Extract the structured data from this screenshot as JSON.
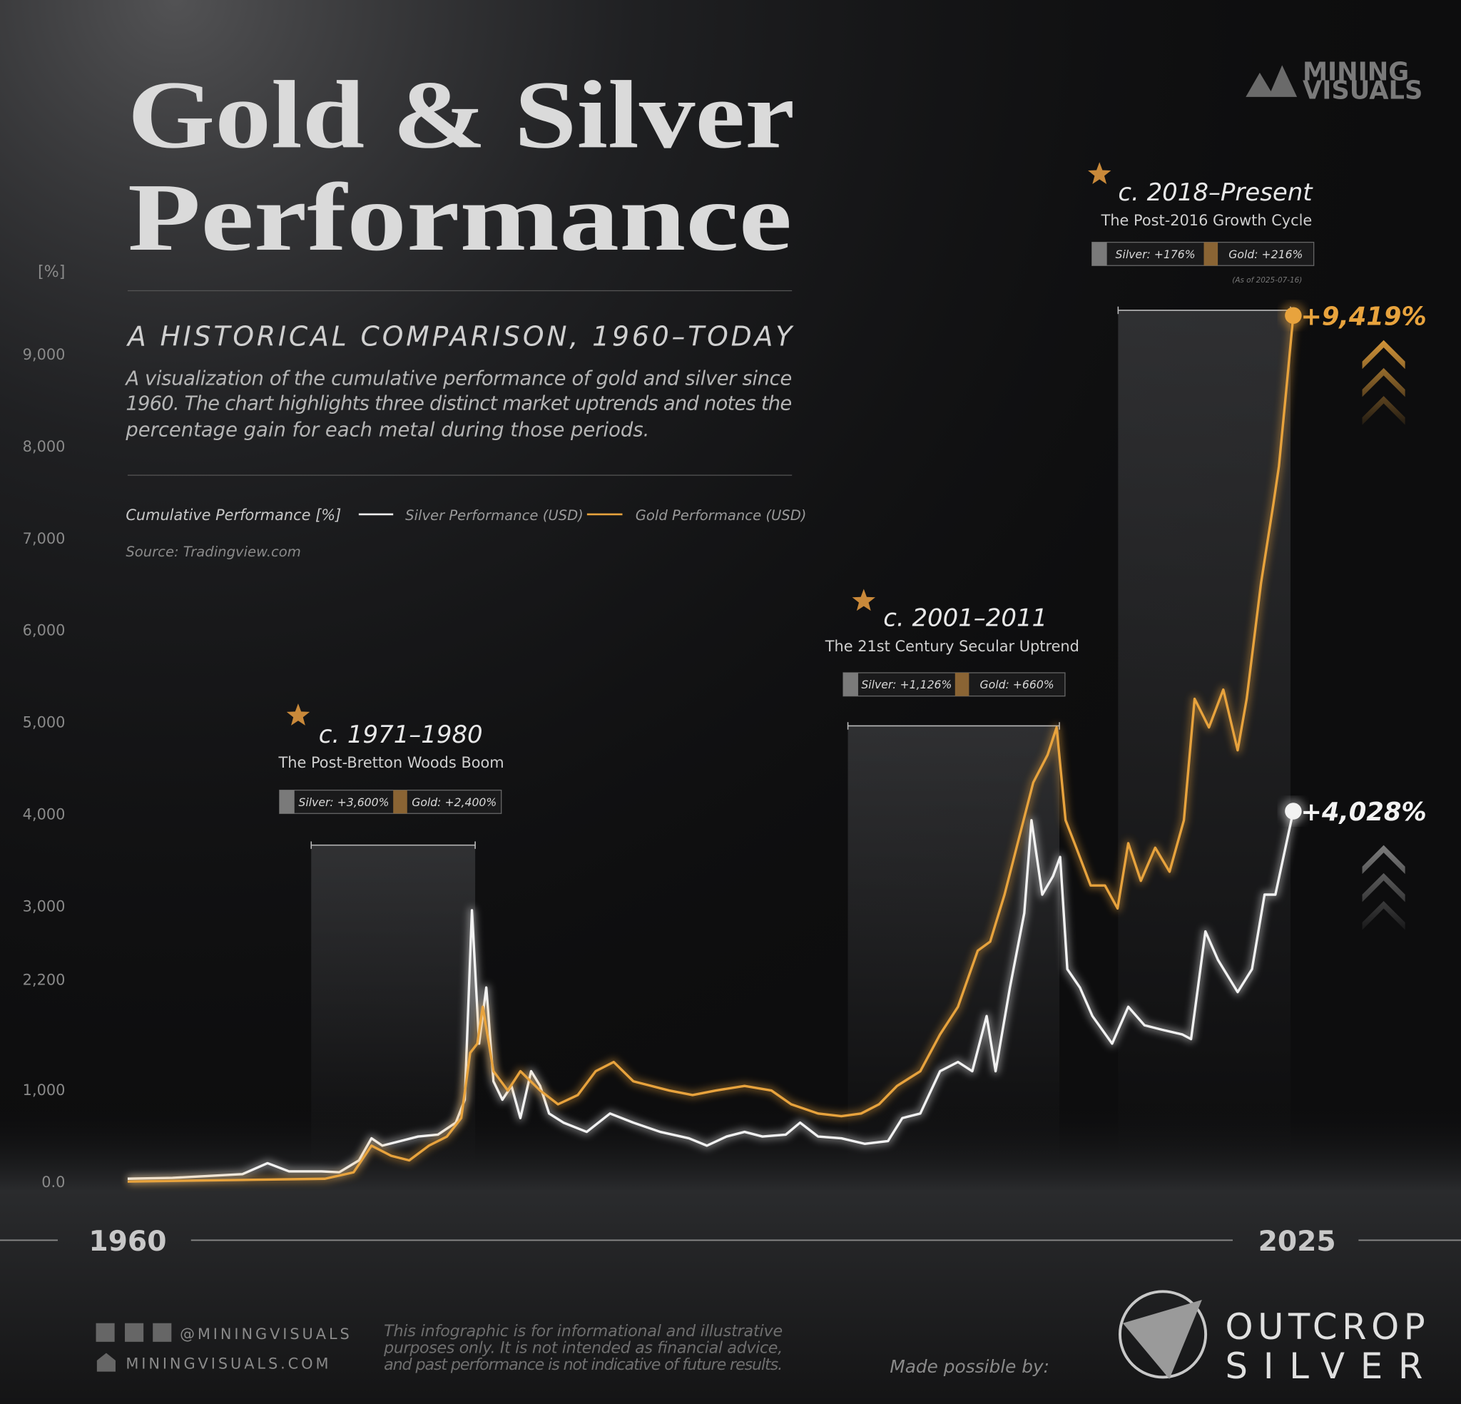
{
  "chart_data": {
    "type": "line",
    "title": [
      "Gold & Silver",
      "Performance"
    ],
    "subtitle": "A HISTORICAL COMPARISON, 1960–TODAY",
    "description": [
      "A visualization of the cumulative performance of gold and silver since",
      "1960. The chart highlights three distinct market uptrends and notes the",
      "percentage gain for each metal during those periods."
    ],
    "legend_title": "Cumulative Performance [%]",
    "source": "Source: Tradingview.com",
    "ylabel": "[%]",
    "xlim": [
      1960,
      2025
    ],
    "xticks": [
      1960,
      2025
    ],
    "ylim": [
      0,
      9800
    ],
    "yticks": [
      {
        "value": 0,
        "label": "0.0"
      },
      {
        "value": 1000,
        "label": "1,000"
      },
      {
        "value": 2200,
        "label": "2,200"
      },
      {
        "value": 3000,
        "label": "3,000"
      },
      {
        "value": 4000,
        "label": "4,000"
      },
      {
        "value": 5000,
        "label": "5,000"
      },
      {
        "value": 6000,
        "label": "6,000"
      },
      {
        "value": 7000,
        "label": "7,000"
      },
      {
        "value": 8000,
        "label": "8,000"
      },
      {
        "value": 9000,
        "label": "9,000"
      }
    ],
    "grid": false,
    "series": [
      {
        "name": "Silver Performance (USD)",
        "color": "#f2f2f2",
        "end_label": "+4,028%",
        "x": [
          1960.0,
          1962.5,
          1966.4,
          1967.8,
          1969.0,
          1970.8,
          1971.8,
          1972.9,
          1973.6,
          1974.2,
          1975.2,
          1976.2,
          1977.3,
          1978.3,
          1978.8,
          1979.2,
          1979.6,
          1980.0,
          1980.4,
          1980.9,
          1981.4,
          1981.9,
          1982.5,
          1983.0,
          1983.5,
          1984.3,
          1985.6,
          1986.9,
          1988.2,
          1989.7,
          1991.3,
          1992.3,
          1993.4,
          1994.4,
          1995.4,
          1996.7,
          1997.5,
          1998.5,
          1999.8,
          2001.1,
          2002.4,
          2003.2,
          2004.2,
          2005.3,
          2006.3,
          2007.1,
          2007.9,
          2008.4,
          2009.2,
          2010.0,
          2010.4,
          2011.0,
          2011.6,
          2012.0,
          2012.4,
          2013.1,
          2013.8,
          2014.9,
          2015.8,
          2016.7,
          2017.7,
          2018.8,
          2019.3,
          2020.1,
          2020.8,
          2021.9,
          2022.7,
          2023.4,
          2024.0,
          2025.0
        ],
        "values": [
          30,
          40,
          80,
          200,
          110,
          110,
          100,
          230,
          470,
          390,
          440,
          490,
          510,
          640,
          890,
          2950,
          1500,
          2110,
          1090,
          890,
          1040,
          690,
          1200,
          1040,
          740,
          640,
          540,
          740,
          640,
          540,
          470,
          390,
          490,
          540,
          490,
          510,
          640,
          490,
          470,
          410,
          440,
          690,
          740,
          1200,
          1300,
          1200,
          1800,
          1200,
          2110,
          2920,
          3930,
          3120,
          3320,
          3530,
          2310,
          2110,
          1800,
          1500,
          1900,
          1700,
          1650,
          1600,
          1550,
          2720,
          2410,
          2060,
          2310,
          3120,
          3120,
          4028
        ]
      },
      {
        "name": "Gold Performance (USD)",
        "color": "#e8a33d",
        "end_label": "+9,419%",
        "x": [
          1960.0,
          1971.0,
          1972.6,
          1973.6,
          1974.7,
          1975.7,
          1976.8,
          1977.8,
          1978.6,
          1979.1,
          1979.5,
          1979.8,
          1980.4,
          1981.2,
          1981.9,
          1983.0,
          1984.0,
          1985.1,
          1986.1,
          1987.1,
          1988.2,
          1989.2,
          1990.2,
          1991.5,
          1992.8,
          1994.4,
          1995.9,
          1997.0,
          1998.5,
          1999.8,
          2000.9,
          2001.9,
          2002.9,
          2004.2,
          2005.3,
          2006.3,
          2007.4,
          2008.1,
          2008.9,
          2009.7,
          2010.5,
          2011.3,
          2011.8,
          2012.3,
          2012.9,
          2013.7,
          2014.5,
          2015.2,
          2015.8,
          2016.5,
          2017.3,
          2018.1,
          2018.9,
          2019.5,
          2020.3,
          2021.1,
          2021.9,
          2022.4,
          2023.2,
          2023.9,
          2024.2,
          2024.6,
          2025.0
        ],
        "values": [
          0,
          30,
          100,
          390,
          280,
          230,
          390,
          490,
          690,
          1400,
          1500,
          1900,
          1200,
          990,
          1200,
          990,
          840,
          940,
          1200,
          1300,
          1090,
          1040,
          990,
          940,
          990,
          1040,
          990,
          840,
          740,
          710,
          740,
          840,
          1040,
          1200,
          1600,
          1900,
          2510,
          2610,
          3120,
          3730,
          4340,
          4640,
          4940,
          3930,
          3630,
          3220,
          3220,
          2970,
          3680,
          3270,
          3630,
          3370,
          3930,
          5250,
          4940,
          5350,
          4690,
          5250,
          6510,
          7380,
          7780,
          8590,
          9419
        ]
      }
    ],
    "annotations": [
      {
        "title": "c. 1971–1980",
        "subtitle": "The Post-Bretton Woods Boom",
        "silver": "Silver: +3,600%",
        "gold": "Gold: +2,400%"
      },
      {
        "title": "c. 2001–2011",
        "subtitle": "The 21st Century Secular Uptrend",
        "silver": "Silver: +1,126%",
        "gold": "Gold: +660%"
      },
      {
        "title": "c. 2018–Present",
        "subtitle": "The Post-2016 Growth Cycle",
        "silver": "Silver: +176%",
        "gold": "Gold: +216%",
        "note": "(As of 2025-07-16)"
      }
    ]
  },
  "brand": [
    "MINING",
    "VISUALS"
  ],
  "footer": {
    "social": "@MININGVISUALS",
    "website": "MININGVISUALS.COM",
    "disclaimer": [
      "This infographic is for informational and illustrative",
      "purposes only. It is not intended as financial advice,",
      "and past performance is not indicative of future results."
    ],
    "sponsor_intro": "Made possible by:",
    "sponsor": [
      "OUTCROP",
      "SILVER"
    ]
  }
}
